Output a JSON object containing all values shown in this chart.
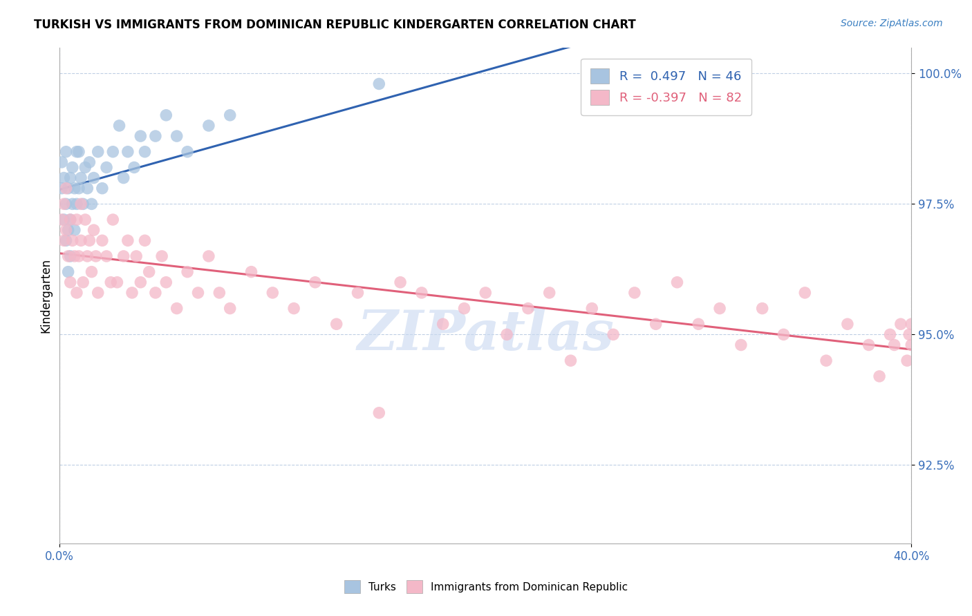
{
  "title": "TURKISH VS IMMIGRANTS FROM DOMINICAN REPUBLIC KINDERGARTEN CORRELATION CHART",
  "source_text": "Source: ZipAtlas.com",
  "ylabel": "Kindergarten",
  "xlim": [
    0.0,
    0.4
  ],
  "ylim": [
    0.91,
    1.005
  ],
  "yticks": [
    0.925,
    0.95,
    0.975,
    1.0
  ],
  "ytick_labels": [
    "92.5%",
    "95.0%",
    "97.5%",
    "100.0%"
  ],
  "xticks": [
    0.0,
    0.4
  ],
  "xtick_labels": [
    "0.0%",
    "40.0%"
  ],
  "legend_r1": "R =  0.497   N = 46",
  "legend_r2": "R = -0.397   N = 82",
  "color_turks": "#a8c4e0",
  "color_dr": "#f4b8c8",
  "color_line_turks": "#2f62b0",
  "color_line_dr": "#e0607a",
  "watermark": "ZIPatlas",
  "watermark_color": "#c8d8f0",
  "turks_x": [
    0.001,
    0.001,
    0.002,
    0.002,
    0.003,
    0.003,
    0.003,
    0.004,
    0.004,
    0.004,
    0.005,
    0.005,
    0.005,
    0.006,
    0.006,
    0.007,
    0.007,
    0.008,
    0.008,
    0.009,
    0.009,
    0.01,
    0.011,
    0.012,
    0.013,
    0.014,
    0.015,
    0.016,
    0.018,
    0.02,
    0.022,
    0.025,
    0.028,
    0.03,
    0.032,
    0.035,
    0.038,
    0.04,
    0.045,
    0.05,
    0.055,
    0.06,
    0.07,
    0.08,
    0.15,
    0.28
  ],
  "turks_y": [
    0.978,
    0.983,
    0.972,
    0.98,
    0.968,
    0.975,
    0.985,
    0.962,
    0.97,
    0.978,
    0.965,
    0.972,
    0.98,
    0.975,
    0.982,
    0.97,
    0.978,
    0.975,
    0.985,
    0.978,
    0.985,
    0.98,
    0.975,
    0.982,
    0.978,
    0.983,
    0.975,
    0.98,
    0.985,
    0.978,
    0.982,
    0.985,
    0.99,
    0.98,
    0.985,
    0.982,
    0.988,
    0.985,
    0.988,
    0.992,
    0.988,
    0.985,
    0.99,
    0.992,
    0.998,
    1.0
  ],
  "dr_x": [
    0.001,
    0.002,
    0.002,
    0.003,
    0.003,
    0.004,
    0.005,
    0.005,
    0.006,
    0.007,
    0.008,
    0.008,
    0.009,
    0.01,
    0.01,
    0.011,
    0.012,
    0.013,
    0.014,
    0.015,
    0.016,
    0.017,
    0.018,
    0.02,
    0.022,
    0.024,
    0.025,
    0.027,
    0.03,
    0.032,
    0.034,
    0.036,
    0.038,
    0.04,
    0.042,
    0.045,
    0.048,
    0.05,
    0.055,
    0.06,
    0.065,
    0.07,
    0.075,
    0.08,
    0.09,
    0.1,
    0.11,
    0.12,
    0.13,
    0.14,
    0.15,
    0.16,
    0.17,
    0.18,
    0.19,
    0.2,
    0.21,
    0.22,
    0.23,
    0.24,
    0.25,
    0.26,
    0.27,
    0.28,
    0.29,
    0.3,
    0.31,
    0.32,
    0.33,
    0.34,
    0.35,
    0.36,
    0.37,
    0.38,
    0.385,
    0.39,
    0.392,
    0.395,
    0.398,
    0.399,
    0.4,
    0.4
  ],
  "dr_y": [
    0.972,
    0.968,
    0.975,
    0.97,
    0.978,
    0.965,
    0.96,
    0.972,
    0.968,
    0.965,
    0.958,
    0.972,
    0.965,
    0.968,
    0.975,
    0.96,
    0.972,
    0.965,
    0.968,
    0.962,
    0.97,
    0.965,
    0.958,
    0.968,
    0.965,
    0.96,
    0.972,
    0.96,
    0.965,
    0.968,
    0.958,
    0.965,
    0.96,
    0.968,
    0.962,
    0.958,
    0.965,
    0.96,
    0.955,
    0.962,
    0.958,
    0.965,
    0.958,
    0.955,
    0.962,
    0.958,
    0.955,
    0.96,
    0.952,
    0.958,
    0.935,
    0.96,
    0.958,
    0.952,
    0.955,
    0.958,
    0.95,
    0.955,
    0.958,
    0.945,
    0.955,
    0.95,
    0.958,
    0.952,
    0.96,
    0.952,
    0.955,
    0.948,
    0.955,
    0.95,
    0.958,
    0.945,
    0.952,
    0.948,
    0.942,
    0.95,
    0.948,
    0.952,
    0.945,
    0.95,
    0.948,
    0.952
  ]
}
